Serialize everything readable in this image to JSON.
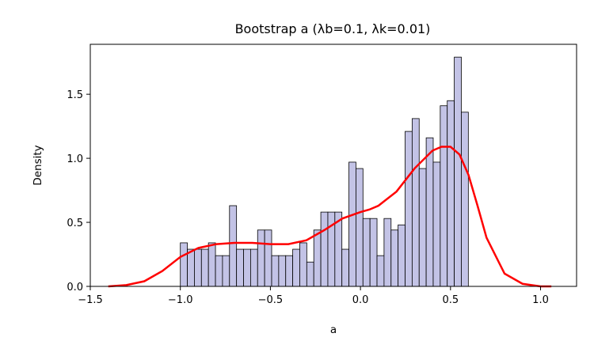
{
  "chart_data": {
    "type": "histogram",
    "title": "Bootstrap a (λb=0.1, λk=0.01)",
    "xlabel": "a",
    "ylabel": "Density",
    "xlim": [
      -1.5,
      1.2
    ],
    "ylim": [
      0,
      1.89
    ],
    "grid": false,
    "legend": "none",
    "bar_color": "#c3c3e6",
    "edge_color": "#000000",
    "kde_color": "#ff0000",
    "xticks": [
      {
        "value": -1.5,
        "label": "−1.5"
      },
      {
        "value": -1.0,
        "label": "−1.0"
      },
      {
        "value": -0.5,
        "label": "−0.5"
      },
      {
        "value": 0.0,
        "label": "0.0"
      },
      {
        "value": 0.5,
        "label": "0.5"
      },
      {
        "value": 1.0,
        "label": "1.0"
      }
    ],
    "yticks": [
      {
        "value": 0.0,
        "label": "0.0"
      },
      {
        "value": 0.5,
        "label": "0.5"
      },
      {
        "value": 1.0,
        "label": "1.0"
      },
      {
        "value": 1.5,
        "label": "1.5"
      }
    ],
    "bins": [
      {
        "x0": -1.0,
        "x1": -0.961,
        "density": 0.34
      },
      {
        "x0": -0.961,
        "x1": -0.922,
        "density": 0.29
      },
      {
        "x0": -0.922,
        "x1": -0.883,
        "density": 0.29
      },
      {
        "x0": -0.883,
        "x1": -0.844,
        "density": 0.29
      },
      {
        "x0": -0.844,
        "x1": -0.805,
        "density": 0.34
      },
      {
        "x0": -0.805,
        "x1": -0.766,
        "density": 0.24
      },
      {
        "x0": -0.766,
        "x1": -0.727,
        "density": 0.24
      },
      {
        "x0": -0.727,
        "x1": -0.688,
        "density": 0.63
      },
      {
        "x0": -0.688,
        "x1": -0.649,
        "density": 0.29
      },
      {
        "x0": -0.649,
        "x1": -0.61,
        "density": 0.29
      },
      {
        "x0": -0.61,
        "x1": -0.571,
        "density": 0.29
      },
      {
        "x0": -0.571,
        "x1": -0.532,
        "density": 0.44
      },
      {
        "x0": -0.532,
        "x1": -0.493,
        "density": 0.44
      },
      {
        "x0": -0.493,
        "x1": -0.454,
        "density": 0.24
      },
      {
        "x0": -0.454,
        "x1": -0.415,
        "density": 0.24
      },
      {
        "x0": -0.415,
        "x1": -0.376,
        "density": 0.24
      },
      {
        "x0": -0.376,
        "x1": -0.337,
        "density": 0.29
      },
      {
        "x0": -0.337,
        "x1": -0.298,
        "density": 0.34
      },
      {
        "x0": -0.298,
        "x1": -0.259,
        "density": 0.19
      },
      {
        "x0": -0.259,
        "x1": -0.22,
        "density": 0.44
      },
      {
        "x0": -0.22,
        "x1": -0.181,
        "density": 0.58
      },
      {
        "x0": -0.181,
        "x1": -0.142,
        "density": 0.58
      },
      {
        "x0": -0.142,
        "x1": -0.103,
        "density": 0.58
      },
      {
        "x0": -0.103,
        "x1": -0.064,
        "density": 0.29
      },
      {
        "x0": -0.064,
        "x1": -0.025,
        "density": 0.97
      },
      {
        "x0": -0.025,
        "x1": 0.014,
        "density": 0.92
      },
      {
        "x0": 0.014,
        "x1": 0.053,
        "density": 0.53
      },
      {
        "x0": 0.053,
        "x1": 0.092,
        "density": 0.53
      },
      {
        "x0": 0.092,
        "x1": 0.131,
        "density": 0.24
      },
      {
        "x0": 0.131,
        "x1": 0.17,
        "density": 0.53
      },
      {
        "x0": 0.17,
        "x1": 0.209,
        "density": 0.44
      },
      {
        "x0": 0.209,
        "x1": 0.248,
        "density": 0.48
      },
      {
        "x0": 0.248,
        "x1": 0.287,
        "density": 1.21
      },
      {
        "x0": 0.287,
        "x1": 0.326,
        "density": 1.31
      },
      {
        "x0": 0.326,
        "x1": 0.365,
        "density": 0.92
      },
      {
        "x0": 0.365,
        "x1": 0.404,
        "density": 1.16
      },
      {
        "x0": 0.404,
        "x1": 0.443,
        "density": 0.97
      },
      {
        "x0": 0.443,
        "x1": 0.482,
        "density": 1.41
      },
      {
        "x0": 0.482,
        "x1": 0.521,
        "density": 1.45
      },
      {
        "x0": 0.521,
        "x1": 0.56,
        "density": 1.79
      },
      {
        "x0": 0.56,
        "x1": 0.599,
        "density": 1.36
      }
    ],
    "kde": {
      "x": [
        -1.4,
        -1.3,
        -1.2,
        -1.1,
        -1.0,
        -0.9,
        -0.8,
        -0.7,
        -0.6,
        -0.5,
        -0.4,
        -0.3,
        -0.2,
        -0.1,
        0.0,
        0.05,
        0.1,
        0.2,
        0.3,
        0.4,
        0.45,
        0.5,
        0.55,
        0.6,
        0.65,
        0.7,
        0.8,
        0.9,
        1.0,
        1.06
      ],
      "y": [
        0.0,
        0.01,
        0.04,
        0.12,
        0.23,
        0.3,
        0.33,
        0.34,
        0.34,
        0.33,
        0.33,
        0.36,
        0.44,
        0.53,
        0.58,
        0.6,
        0.63,
        0.74,
        0.92,
        1.06,
        1.09,
        1.09,
        1.03,
        0.87,
        0.63,
        0.38,
        0.1,
        0.02,
        0.0,
        0.0
      ]
    }
  }
}
